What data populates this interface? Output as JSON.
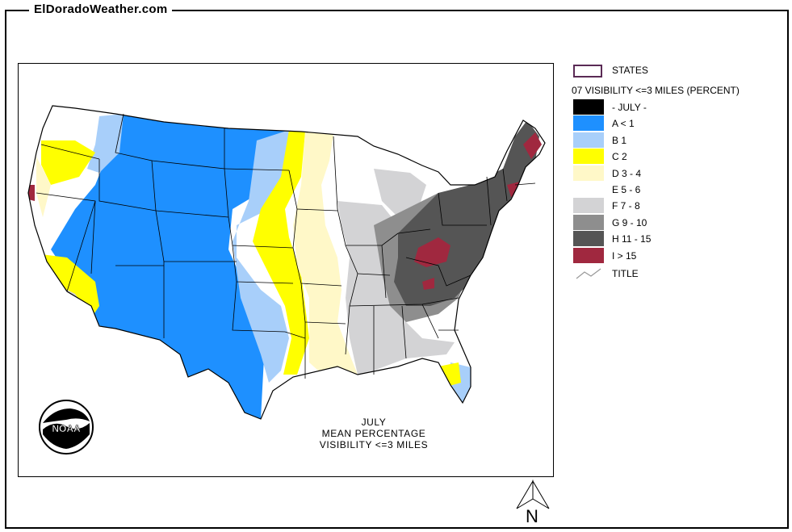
{
  "site": {
    "title": "ElDoradoWeather.com"
  },
  "map": {
    "caption": [
      "JULY",
      "MEAN PERCENTAGE",
      "VISIBILITY <=3 MILES"
    ],
    "logo_text": "NOAA"
  },
  "legend": {
    "states_label": "STATES",
    "layer_title": "07 VISIBILITY <=3 MILES (PERCENT)",
    "items": [
      {
        "label": "- JULY -",
        "color": "#000000"
      },
      {
        "label": "A < 1",
        "color": "#1e90ff"
      },
      {
        "label": "B 1",
        "color": "#a8cffa"
      },
      {
        "label": "C 2",
        "color": "#ffff00"
      },
      {
        "label": "D 3 - 4",
        "color": "#fff8c8"
      },
      {
        "label": "E 5 - 6",
        "color": "#ffffff"
      },
      {
        "label": "F 7 - 8",
        "color": "#d3d3d5"
      },
      {
        "label": "G 9 - 10",
        "color": "#8e8e8e"
      },
      {
        "label": "H 11 - 15",
        "color": "#555555"
      },
      {
        "label": "I > 15",
        "color": "#a0283f"
      }
    ],
    "title_label": "TITLE"
  },
  "north_arrow": {
    "letter": "N"
  }
}
